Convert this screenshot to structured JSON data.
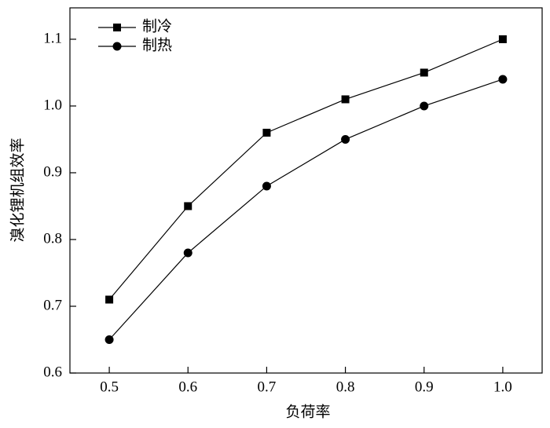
{
  "chart_data": {
    "type": "line",
    "x_label": "负荷率",
    "y_label": "溴化锂机组效率",
    "x": [
      0.5,
      0.6,
      0.7,
      0.8,
      0.9,
      1.0
    ],
    "series": [
      {
        "name": "制冷",
        "color": "#000000",
        "marker": "square",
        "values": [
          0.71,
          0.85,
          0.96,
          1.01,
          1.05,
          1.1
        ]
      },
      {
        "name": "制热",
        "color": "#000000",
        "marker": "circle",
        "values": [
          0.65,
          0.78,
          0.88,
          0.95,
          1.0,
          1.04
        ]
      }
    ],
    "xlim": [
      0.45,
      1.05
    ],
    "xticks": [
      0.5,
      0.6,
      0.7,
      0.8,
      0.9,
      {
        "value": 1,
        "label": "1.0"
      }
    ],
    "ylim": [
      0.6,
      1.147
    ],
    "yticks": [
      0.6,
      0.7,
      0.8,
      0.9,
      {
        "value": 1,
        "label": "1.0"
      },
      1.1
    ],
    "legend": "top-left"
  }
}
